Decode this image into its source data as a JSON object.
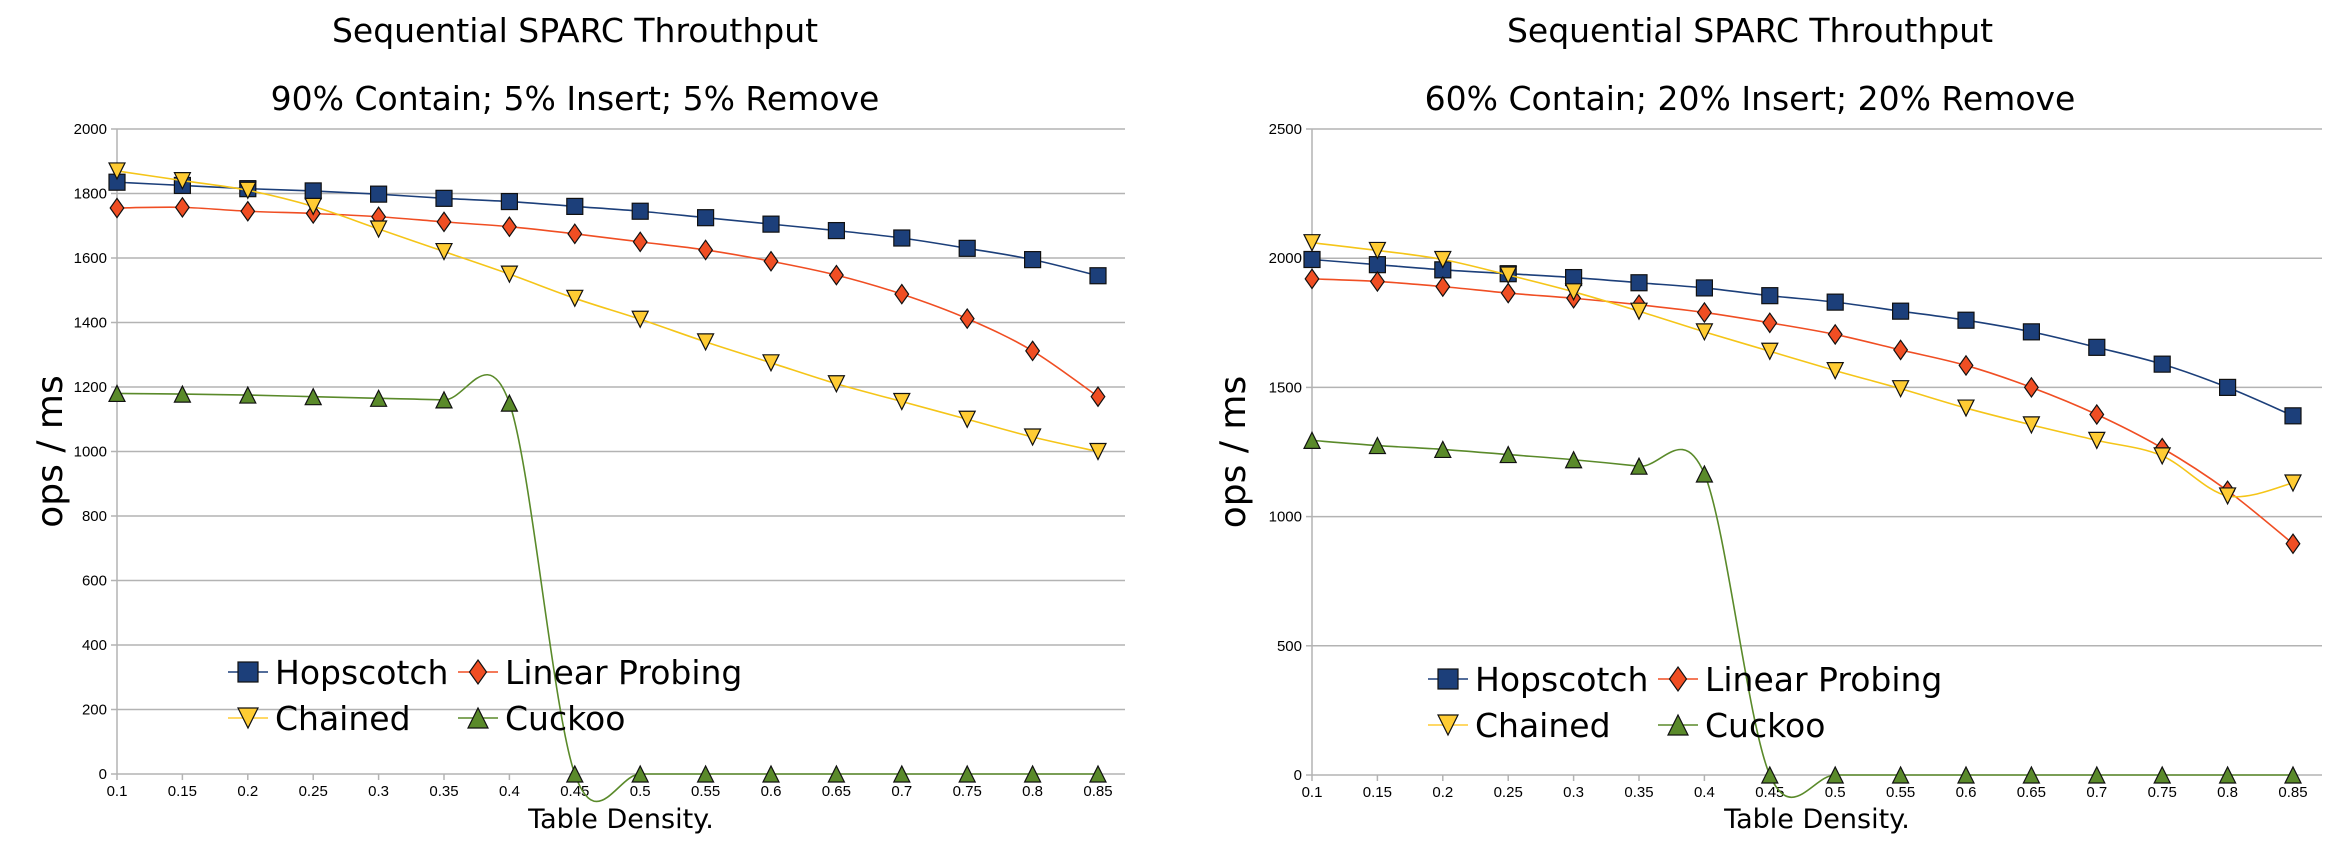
{
  "chart_data": [
    {
      "type": "line",
      "title": "Sequential  SPARC Throuthput",
      "subtitle": "90% Contain; 5% Insert; 5% Remove",
      "xlabel": "Table Density.",
      "ylabel": "ops / ms",
      "ylim": [
        0,
        2000
      ],
      "yticks": [
        "0",
        "200",
        "400",
        "600",
        "800",
        "1000",
        "1200",
        "1400",
        "1600",
        "1800",
        "2000"
      ],
      "x": [
        "0.1",
        "0.15",
        "0.2",
        "0.25",
        "0.3",
        "0.35",
        "0.4",
        "0.45",
        "0.5",
        "0.55",
        "0.6",
        "0.65",
        "0.7",
        "0.75",
        "0.8",
        "0.85"
      ],
      "grid": true,
      "legend_placement": "bottom-left",
      "series": [
        {
          "name": "Hopscotch",
          "color": "#1c3f7a",
          "marker": "square",
          "values": [
            1835,
            1825,
            1815,
            1808,
            1798,
            1785,
            1775,
            1760,
            1745,
            1725,
            1705,
            1685,
            1662,
            1630,
            1595,
            1545
          ]
        },
        {
          "name": "Linear Probing",
          "color": "#f04e23",
          "marker": "diamond",
          "values": [
            1755,
            1757,
            1745,
            1738,
            1728,
            1712,
            1697,
            1675,
            1650,
            1625,
            1590,
            1547,
            1488,
            1412,
            1312,
            1170
          ]
        },
        {
          "name": "Chained",
          "color": "#ffcc33",
          "marker": "triangle-down",
          "values": [
            1870,
            1840,
            1810,
            1760,
            1690,
            1620,
            1550,
            1475,
            1410,
            1340,
            1275,
            1210,
            1155,
            1100,
            1045,
            1000
          ]
        },
        {
          "name": "Cuckoo",
          "color": "#5a8a2a",
          "marker": "triangle-up",
          "values": [
            1180,
            1178,
            1175,
            1170,
            1165,
            1160,
            1150,
            0,
            0,
            0,
            0,
            0,
            0,
            0,
            0,
            0
          ]
        }
      ]
    },
    {
      "type": "line",
      "title": "Sequential  SPARC Throuthput",
      "subtitle": "60% Contain; 20% Insert; 20% Remove",
      "xlabel": "Table Density.",
      "ylabel": "ops / ms",
      "ylim": [
        0,
        2500
      ],
      "yticks": [
        "0",
        "500",
        "1000",
        "1500",
        "2000",
        "2500"
      ],
      "x": [
        "0.1",
        "0.15",
        "0.2",
        "0.25",
        "0.3",
        "0.35",
        "0.4",
        "0.45",
        "0.5",
        "0.55",
        "0.6",
        "0.65",
        "0.7",
        "0.75",
        "0.8",
        "0.85"
      ],
      "grid": true,
      "legend_placement": "bottom-left",
      "series": [
        {
          "name": "Hopscotch",
          "color": "#1c3f7a",
          "marker": "square",
          "values": [
            1995,
            1975,
            1955,
            1940,
            1925,
            1905,
            1885,
            1855,
            1830,
            1795,
            1760,
            1715,
            1655,
            1590,
            1500,
            1390
          ]
        },
        {
          "name": "Linear Probing",
          "color": "#f04e23",
          "marker": "diamond",
          "values": [
            1920,
            1910,
            1890,
            1865,
            1845,
            1820,
            1790,
            1750,
            1705,
            1645,
            1585,
            1500,
            1395,
            1265,
            1100,
            895
          ]
        },
        {
          "name": "Chained",
          "color": "#ffcc33",
          "marker": "triangle-down",
          "values": [
            2060,
            2030,
            1995,
            1935,
            1870,
            1795,
            1715,
            1640,
            1565,
            1495,
            1420,
            1355,
            1295,
            1235,
            1080,
            1130
          ]
        },
        {
          "name": "Cuckoo",
          "color": "#5a8a2a",
          "marker": "triangle-up",
          "values": [
            1295,
            1275,
            1260,
            1240,
            1220,
            1195,
            1165,
            0,
            0,
            0,
            0,
            0,
            0,
            0,
            0,
            0
          ]
        }
      ]
    }
  ]
}
